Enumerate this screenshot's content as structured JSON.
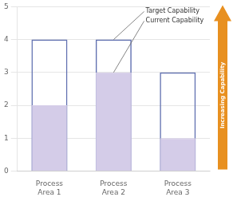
{
  "chart_data": {
    "type": "bar",
    "categories": [
      "Process\nArea 1",
      "Process\nArea 2",
      "Process\nArea 3"
    ],
    "series": [
      {
        "name": "Target Capability",
        "color": "#6070b0",
        "values": [
          4,
          4,
          3
        ]
      },
      {
        "name": "Current Capability",
        "color": "#d4cce8",
        "values": [
          2,
          3,
          1
        ]
      }
    ],
    "ylim": [
      0,
      5
    ],
    "yticks": [
      0,
      1,
      2,
      3,
      4,
      5
    ],
    "grid": true,
    "annotations": [
      {
        "text": "Target Capability",
        "category": "Process\nArea 2"
      },
      {
        "text": "Current Capability",
        "category": "Process\nArea 2"
      },
      {
        "text": "Increasing Capability",
        "color": "#e89020"
      }
    ]
  }
}
